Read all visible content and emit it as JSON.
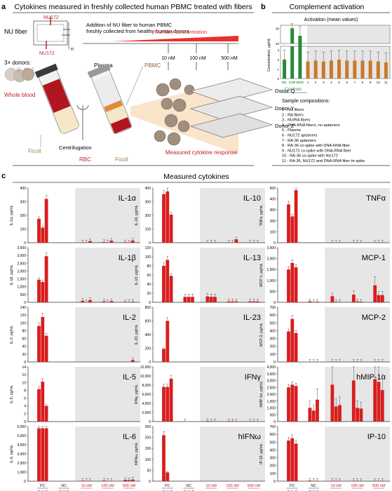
{
  "panel_a": {
    "letter": "a",
    "title": "Cytokines measured in freshly collected human PBMC treated with fibers",
    "nu_fiber_label": "NU fiber",
    "nu172_top": "NU172",
    "nu172_bottom": "NU172",
    "n_label": "n",
    "description": [
      "Addition of NU fiber to human PBMC",
      "freshly collected from healthy human donors"
    ],
    "concentration_label": "NU fiber concentration",
    "concentrations": [
      "10 nM",
      "100 nM",
      "500 nM"
    ],
    "donors_label": "3× donors:",
    "donor_letters": [
      "Q",
      "Y",
      "Z"
    ],
    "whole_blood": "Whole blood",
    "plasma": "Plasma",
    "pbmc": "PBMC",
    "ficoll_left": "Ficoll",
    "centrifugation": "Centrifugation",
    "rbc": "RBC",
    "ficoll_right": "Ficoll",
    "donor_plates": [
      "Donor Q",
      "Donor Y",
      "Donor Z"
    ],
    "measured": "Measured cytokine response"
  },
  "panel_b": {
    "letter": "b",
    "title": "Complement activation",
    "chart_title": "Activation (mean values)",
    "ylabel": "Concentration, µg/mL",
    "controls_label": "Controls",
    "control_names": [
      "NC",
      "CVF",
      "DOX"
    ],
    "sample_numbers": [
      "1",
      "2",
      "3",
      "4",
      "5",
      "6",
      "7",
      "8",
      "9",
      "10",
      "11"
    ],
    "compositions_title": "Sample compositions:",
    "compositions": [
      "1 - NU fibers",
      "2 - RA fibers",
      "3 - NU/RA fibers",
      "4 - DNA-RNA fibers, no aptamers",
      "5 - Plasma",
      "6 - NU172 aptamers",
      "7 - RA-36 aptamers",
      "8 - RA-36 co-spike with DNA-RNA fiber",
      "9 - NU172 co-spike with DNA-RNA fiber",
      "10 - RA-36 co-spike with NU172",
      "11 - RA-36, NU172 and DNA-RNA fiber tri-spike"
    ],
    "colors": {
      "control": "#2a8a3a",
      "sample": "#c87a2a"
    }
  },
  "panel_c": {
    "letter": "c",
    "title": "Measured cytokines",
    "group_labels": [
      "PC",
      "NC",
      "10 nM",
      "100 nM",
      "500 nM"
    ],
    "donor_letters": [
      "Q",
      "Y",
      "Z"
    ],
    "concentration_label": "NU fiber concentration"
  },
  "chart_data": [
    {
      "type": "bar",
      "name": "IL-1α",
      "ylabel": "IL-1α, pg/mL",
      "yticks": [
        0,
        100,
        200,
        300,
        400
      ],
      "ylim": [
        0,
        400
      ],
      "groups": [
        "PC",
        "NC",
        "10 nM",
        "100 nM",
        "500 nM"
      ],
      "values": [
        [
          175,
          110,
          320
        ],
        [
          0,
          0,
          0
        ],
        [
          3,
          1,
          12
        ],
        [
          5,
          1,
          15
        ],
        [
          4,
          2,
          16
        ]
      ]
    },
    {
      "type": "bar",
      "name": "IL-10",
      "ylabel": "IL-10, pg/mL",
      "yticks": [
        0,
        100,
        200,
        300,
        400
      ],
      "ylim": [
        0,
        400
      ],
      "groups": [
        "PC",
        "NC",
        "10 nM",
        "100 nM",
        "500 nM"
      ],
      "values": [
        [
          355,
          375,
          205
        ],
        [
          0,
          0,
          0
        ],
        [
          1,
          3,
          2
        ],
        [
          1,
          2,
          25
        ],
        [
          1,
          2,
          2
        ]
      ]
    },
    {
      "type": "bar",
      "name": "TNFα",
      "ylabel": "TNFα, pg/mL",
      "yticks": [
        0,
        100,
        200,
        300,
        400,
        500
      ],
      "ylim": [
        0,
        500
      ],
      "groups": [
        "PC",
        "NC",
        "10 nM",
        "100 nM",
        "500 nM"
      ],
      "values": [
        [
          350,
          240,
          480
        ],
        [
          0,
          0,
          0
        ],
        [
          1,
          1,
          1
        ],
        [
          1,
          1,
          1
        ],
        [
          1,
          1,
          1
        ]
      ]
    },
    {
      "type": "bar",
      "name": "IL-1β",
      "ylabel": "IL-1β, pg/mL",
      "yticks": [
        0,
        500,
        1000,
        1500,
        2000,
        2500,
        3000,
        3500
      ],
      "ylim": [
        0,
        3500
      ],
      "groups": [
        "PC",
        "NC",
        "10 nM",
        "100 nM",
        "500 nM"
      ],
      "values": [
        [
          1450,
          1300,
          2950
        ],
        [
          0,
          0,
          0
        ],
        [
          100,
          10,
          140
        ],
        [
          60,
          5,
          80
        ],
        [
          30,
          5,
          40
        ]
      ]
    },
    {
      "type": "bar",
      "name": "IL-13",
      "ylabel": "IL-13, pg/mL",
      "yticks": [
        0,
        20,
        40,
        60,
        80,
        100,
        120
      ],
      "ylim": [
        0,
        120
      ],
      "groups": [
        "PC",
        "NC",
        "10 nM",
        "100 nM",
        "500 nM"
      ],
      "values": [
        [
          80,
          93,
          58
        ],
        [
          12,
          12,
          12
        ],
        [
          13,
          12,
          12
        ],
        [
          2,
          2,
          2
        ],
        [
          2,
          2,
          2
        ]
      ]
    },
    {
      "type": "bar",
      "name": "MCP-1",
      "ylabel": "MCP-1, pg/mL",
      "yticks": [
        0,
        500,
        1000,
        1500,
        2000,
        2500
      ],
      "ylim": [
        0,
        2500
      ],
      "groups": [
        "PC",
        "NC",
        "10 nM",
        "100 nM",
        "500 nM"
      ],
      "values": [
        [
          1500,
          1800,
          1600
        ],
        [
          50,
          20,
          30
        ],
        [
          280,
          20,
          20
        ],
        [
          350,
          40,
          30
        ],
        [
          780,
          330,
          330
        ]
      ]
    },
    {
      "type": "bar",
      "name": "IL-2",
      "ylabel": "IL-2, pg/mL",
      "yticks": [
        0,
        20,
        40,
        60,
        80,
        100,
        120,
        140
      ],
      "ylim": [
        0,
        140
      ],
      "groups": [
        "PC",
        "NC",
        "10 nM",
        "100 nM",
        "500 nM"
      ],
      "values": [
        [
          92,
          115,
          67
        ],
        [
          0,
          0,
          0
        ],
        [
          0,
          0,
          0
        ],
        [
          0,
          0,
          0
        ],
        [
          0,
          0,
          5
        ]
      ]
    },
    {
      "type": "bar",
      "name": "IL-23",
      "ylabel": "IL-23, pg/mL",
      "yticks": [
        0,
        200,
        400,
        600,
        800
      ],
      "ylim": [
        0,
        800
      ],
      "groups": [
        "PC",
        "NC",
        "10 nM",
        "100 nM",
        "500 nM"
      ],
      "values": [
        [
          190,
          600,
          0
        ],
        [
          0,
          0,
          0
        ],
        [
          0,
          0,
          0
        ],
        [
          0,
          0,
          0
        ],
        [
          0,
          0,
          0
        ]
      ]
    },
    {
      "type": "bar",
      "name": "MCP-2",
      "ylabel": "MCP-2, pg/mL",
      "yticks": [
        0,
        100,
        200,
        300,
        400,
        500,
        600,
        700
      ],
      "ylim": [
        0,
        700
      ],
      "groups": [
        "PC",
        "NC",
        "10 nM",
        "100 nM",
        "500 nM"
      ],
      "values": [
        [
          390,
          550,
          370
        ],
        [
          2,
          2,
          2
        ],
        [
          2,
          2,
          2
        ],
        [
          2,
          2,
          2
        ],
        [
          2,
          2,
          2
        ]
      ]
    },
    {
      "type": "bar",
      "name": "IL-5",
      "ylabel": "IL-5, pg/mL",
      "yticks": [
        0,
        2,
        4,
        6,
        8,
        10,
        12,
        14
      ],
      "ylim": [
        0,
        14
      ],
      "groups": [
        "PC",
        "NC",
        "10 nM",
        "100 nM",
        "500 nM"
      ],
      "values": [
        [
          8.3,
          10.2,
          4.0
        ],
        [
          0,
          0,
          0
        ],
        [
          0,
          0,
          0
        ],
        [
          0,
          0,
          0
        ],
        [
          0,
          0,
          0
        ]
      ]
    },
    {
      "type": "bar",
      "name": "IFNγ",
      "ylabel": "IFNγ, pg/mL",
      "yticks": [
        0,
        2000,
        4000,
        6000,
        8000,
        10000,
        12000
      ],
      "ylim": [
        0,
        12000
      ],
      "groups": [
        "PC",
        "NC",
        "10 nM",
        "100 nM",
        "500 nM"
      ],
      "values": [
        [
          7600,
          7600,
          9400
        ],
        [
          50,
          0,
          0
        ],
        [
          150,
          50,
          50
        ],
        [
          100,
          100,
          50
        ],
        [
          50,
          30,
          30
        ]
      ]
    },
    {
      "type": "bar",
      "name": "hMIP-1α",
      "ylabel": "hMIP-1α, pg/mL",
      "yticks": [
        0,
        500,
        1000,
        1500,
        2000,
        2500,
        3000,
        3500,
        4000
      ],
      "ylim": [
        0,
        4000
      ],
      "groups": [
        "PC",
        "NC",
        "10 nM",
        "100 nM",
        "500 nM"
      ],
      "values": [
        [
          2500,
          2700,
          2600
        ],
        [
          1000,
          800,
          1600
        ],
        [
          2700,
          1100,
          1200
        ],
        [
          3000,
          1000,
          950
        ],
        [
          3100,
          2900,
          2300
        ]
      ]
    },
    {
      "type": "bar",
      "name": "IL-6",
      "ylabel": "IL-6, pg/mL",
      "yticks": [
        0,
        1000,
        2000,
        3000,
        4000,
        5000,
        6000
      ],
      "ylim": [
        0,
        6000
      ],
      "groups": [
        "PC",
        "NC",
        "10 nM",
        "100 nM",
        "500 nM"
      ],
      "values": [
        [
          5800,
          5800,
          5800
        ],
        [
          0,
          0,
          0
        ],
        [
          60,
          20,
          40
        ],
        [
          70,
          20,
          30
        ],
        [
          150,
          120,
          180
        ]
      ]
    },
    {
      "type": "bar",
      "name": "hIFNω",
      "ylabel": "hIFNω, pg/mL",
      "yticks": [
        0,
        50,
        100,
        150,
        200,
        250
      ],
      "ylim": [
        0,
        250
      ],
      "groups": [
        "PC",
        "NC",
        "10 nM",
        "100 nM",
        "500 nM"
      ],
      "values": [
        [
          210,
          40,
          0
        ],
        [
          0,
          0,
          0
        ],
        [
          0,
          0,
          0
        ],
        [
          0,
          0,
          0
        ],
        [
          0,
          0,
          0
        ]
      ]
    },
    {
      "type": "bar",
      "name": "IP-10",
      "ylabel": "IP-10, pg/mL",
      "yticks": [
        0,
        100,
        200,
        300,
        400,
        500,
        600,
        700
      ],
      "ylim": [
        0,
        700
      ],
      "groups": [
        "PC",
        "NC",
        "10 nM",
        "100 nM",
        "500 nM"
      ],
      "values": [
        [
          520,
          550,
          480
        ],
        [
          8,
          5,
          5
        ],
        [
          5,
          3,
          3
        ],
        [
          5,
          3,
          3
        ],
        [
          5,
          3,
          3
        ]
      ]
    }
  ],
  "complement_chart": {
    "type": "bar",
    "categories": [
      "NC",
      "CVF",
      "DOX",
      "1",
      "2",
      "3",
      "4",
      "5",
      "6",
      "7",
      "8",
      "9",
      "10",
      "11"
    ],
    "values": [
      2,
      30,
      4.5,
      1.8,
      1.9,
      1.8,
      1.9,
      2.0,
      1.9,
      1.9,
      1.9,
      1.9,
      1.8,
      1.7
    ],
    "top_yticks": [
      20,
      30
    ],
    "bottom_yticks": [
      0,
      1,
      2,
      3
    ],
    "grid": false
  },
  "colors": {
    "bar": "#d81e1e",
    "shade": "#e6e6e6",
    "nu_bar": "#e8302c"
  }
}
